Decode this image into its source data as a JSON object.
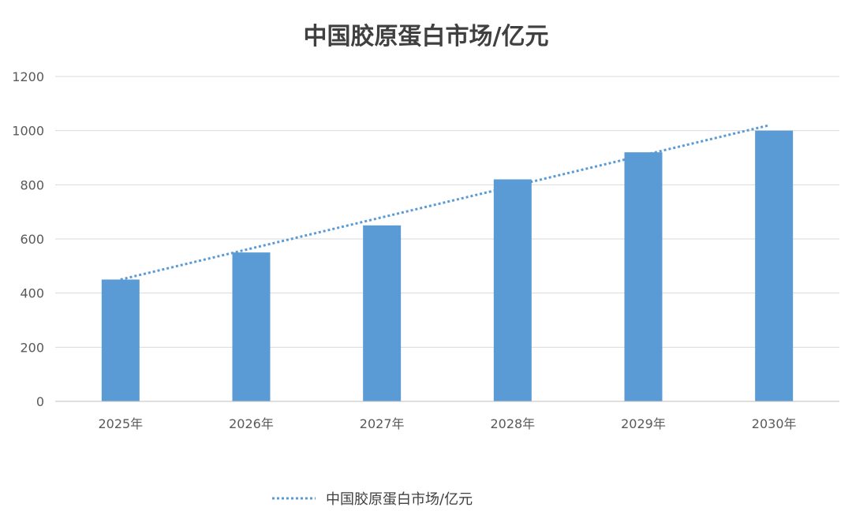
{
  "chart_data": {
    "type": "bar",
    "title": "中国胶原蛋白市场/亿元",
    "categories": [
      "2025年",
      "2026年",
      "2027年",
      "2028年",
      "2029年",
      "2030年"
    ],
    "values": [
      450,
      550,
      650,
      820,
      920,
      1000
    ],
    "ylim": [
      0,
      1200
    ],
    "yticks": [
      0,
      200,
      400,
      600,
      800,
      1000,
      1200
    ],
    "grid": true,
    "trendline": {
      "style": "dotted",
      "start": 450,
      "end": 1020
    },
    "legend": {
      "position": "bottom",
      "label": "中国胶原蛋白市场/亿元"
    },
    "colors": {
      "bar": "#5b9bd5",
      "trendline": "#5b9bd5",
      "grid": "#d9d9d9",
      "axis": "#bfbfbf",
      "text": "#595959",
      "title": "#404040"
    }
  }
}
